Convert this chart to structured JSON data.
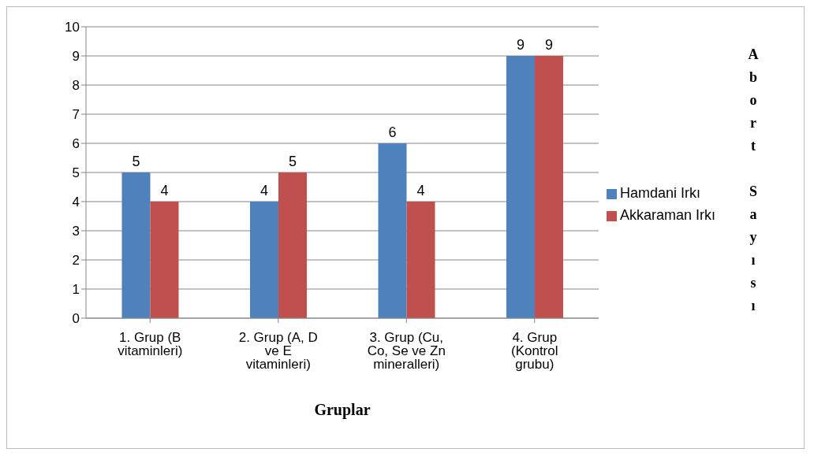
{
  "chart_data": {
    "type": "bar",
    "xlabel": "Gruplar",
    "annotations": [
      "Abort Sayısı"
    ],
    "categories": [
      "1. Grup (B vitaminleri)",
      "2. Grup (A, D ve E vitaminleri)",
      "3. Grup (Cu, Co, Se ve Zn mineralleri)",
      "4. Grup (Kontrol grubu)"
    ],
    "series": [
      {
        "name": "Hamdani Irkı",
        "color": "#4f81bd",
        "values": [
          5,
          4,
          6,
          9
        ]
      },
      {
        "name": "Akkaraman Irkı",
        "color": "#c0504d",
        "values": [
          4,
          5,
          4,
          9
        ]
      }
    ],
    "ylim": [
      0,
      10
    ],
    "yticks": [
      0,
      1,
      2,
      3,
      4,
      5,
      6,
      7,
      8,
      9,
      10
    ],
    "grid": "y",
    "legend": "right",
    "data_labels": true
  }
}
